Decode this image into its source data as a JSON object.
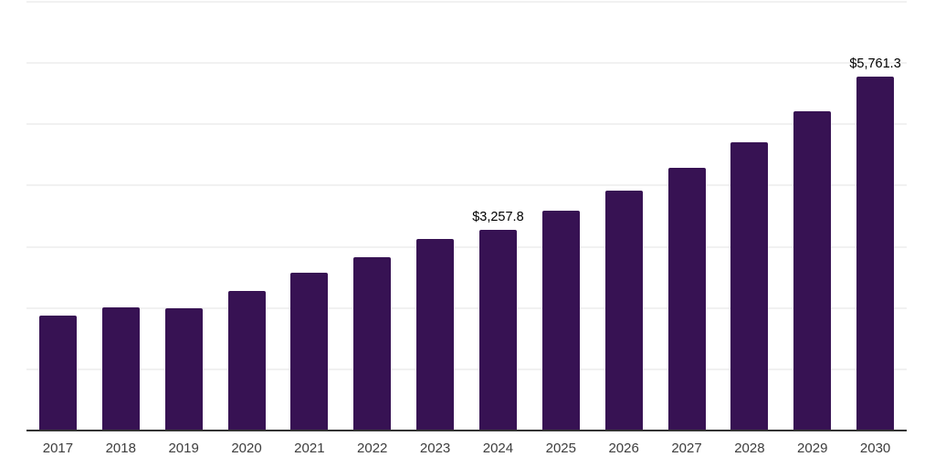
{
  "chart_data": {
    "type": "bar",
    "title": "",
    "xlabel": "",
    "ylabel": "",
    "categories": [
      "2017",
      "2018",
      "2019",
      "2020",
      "2021",
      "2022",
      "2023",
      "2024",
      "2025",
      "2026",
      "2027",
      "2028",
      "2029",
      "2030"
    ],
    "values": [
      1869,
      1996,
      1981,
      2264,
      2562,
      2811,
      3108,
      3257.8,
      3575,
      3905,
      4270,
      4685,
      5195,
      5761.3
    ],
    "annotations": [
      {
        "category": "2024",
        "text": "$3,257.8"
      },
      {
        "category": "2030",
        "text": "$5,761.3"
      }
    ],
    "ylim": [
      0,
      7000
    ],
    "gridline_step": 1000,
    "grid": "horizontal-only",
    "legend": "none",
    "y_tick_labels_visible": false,
    "colors": {
      "bar": "#371253",
      "gridline": "#f1f1f1",
      "axis_line": "#333333",
      "data_label": "#000000",
      "tick_label": "#3d3d3d",
      "background": "#ffffff"
    }
  }
}
